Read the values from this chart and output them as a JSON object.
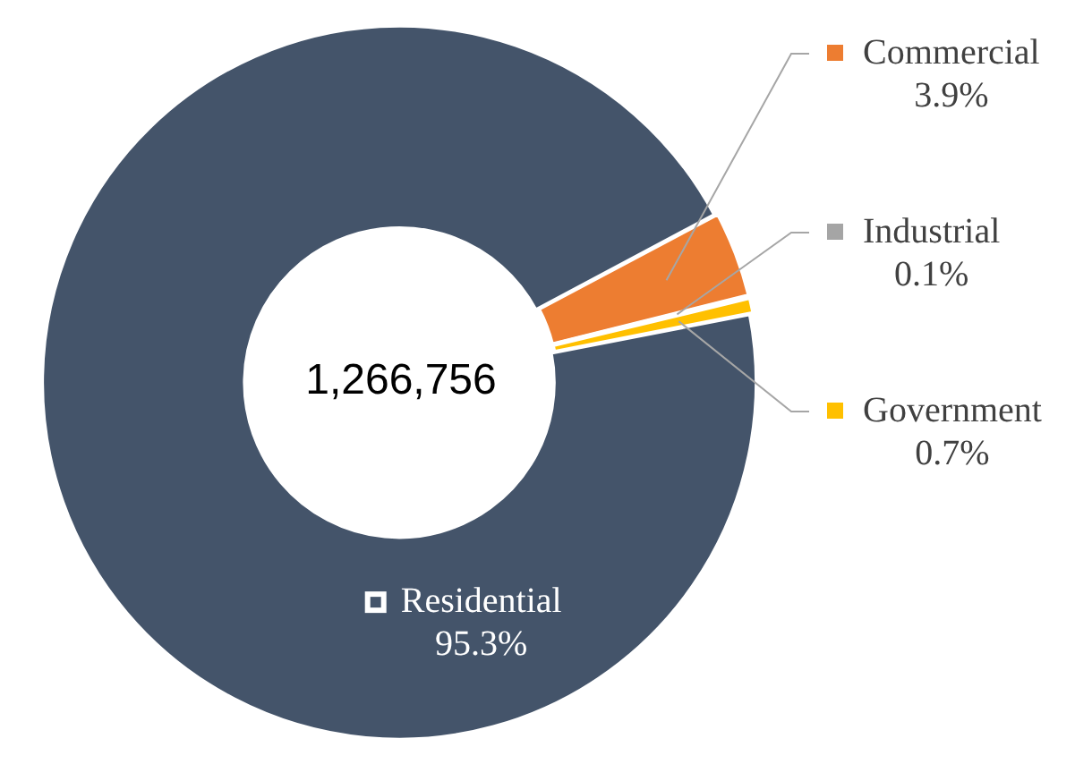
{
  "chart_data": {
    "type": "donut",
    "categories": [
      "Commercial",
      "Industrial",
      "Government",
      "Residential"
    ],
    "values": [
      3.9,
      0.1,
      0.7,
      95.3
    ],
    "colors": [
      "#ed7d31",
      "#a5a5a5",
      "#ffc000",
      "#44546a"
    ],
    "value_labels": [
      "3.9%",
      "0.1%",
      "0.7%",
      "95.3%"
    ],
    "legend": "right",
    "annotations": [
      "1,266,756"
    ]
  }
}
